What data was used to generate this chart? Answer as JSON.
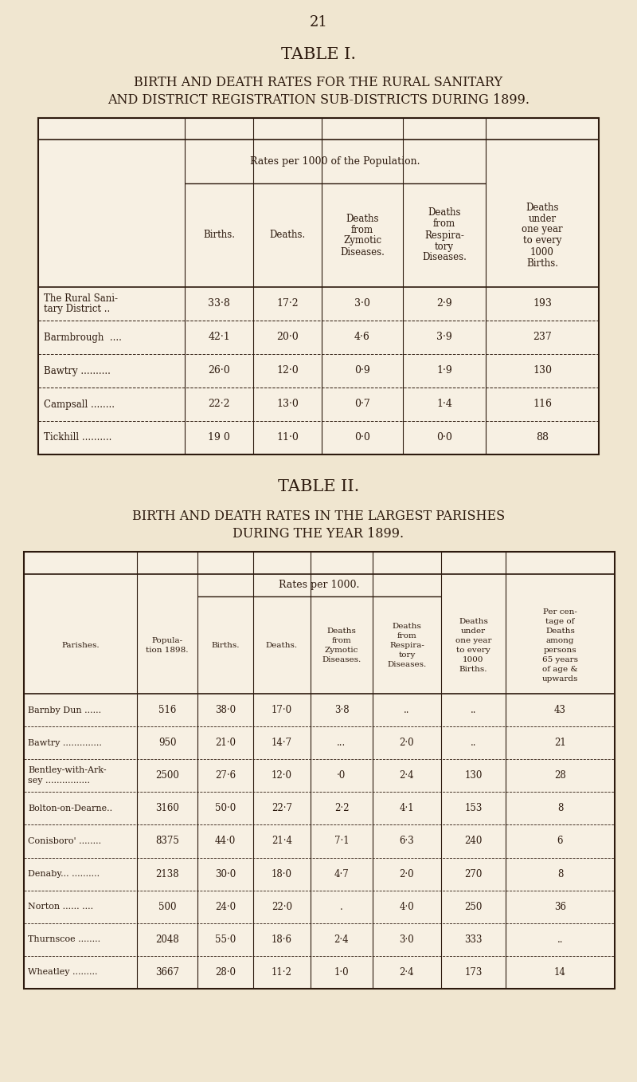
{
  "page_number": "21",
  "bg_color": "#f0e6d0",
  "table_bg": "#f7f0e3",
  "text_color": "#2d1a0e",
  "table1": {
    "title": "TABLE I.",
    "sub1": "BIRTH AND DEATH RATES FOR THE RURAL SANITARY",
    "sub2": "AND DISTRICT REGISTRATION SUB-DISTRICTS DURING 1899.",
    "group_header": "Rates per 1000 of the Population.",
    "col_headers": [
      "Births.",
      "Deaths.",
      "Deaths\nfrom\nZymotic\nDiseases.",
      "Deaths\nfrom\nRespira-\ntory\nDiseases.",
      "Deaths\nunder\none year\nto every\n1000\nBirths."
    ],
    "rows": [
      [
        "The Rural Sani-\ntary District ..",
        "33·8",
        "17·2",
        "3·0",
        "2·9",
        "193"
      ],
      [
        "Barmbrough  ....",
        "42·1",
        "20·0",
        "4·6",
        "3·9",
        "237"
      ],
      [
        "Bawtry ..........",
        "26·0",
        "12·0",
        "0·9",
        "1·9",
        "130"
      ],
      [
        "Campsall ........",
        "22·2",
        "13·0",
        "0·7",
        "1·4",
        "116"
      ],
      [
        "Tickhill ..........",
        "19 0",
        "11·0",
        "0·0",
        "0·0",
        "88"
      ]
    ]
  },
  "table2": {
    "title": "TABLE II.",
    "sub1": "BIRTH AND DEATH RATES IN THE LARGEST PARISHES",
    "sub2": "DURING THE YEAR 1899.",
    "group_header": "Rates per 1000.",
    "col_headers": [
      "Parishes.",
      "Popula-\ntion 1898.",
      "Births.",
      "Deaths.",
      "Deaths\nfrom\nZymotic\nDiseases.",
      "Deaths\nfrom\nRespira-\ntory\nDiseases.",
      "Deaths\nunder\none year\nto every\n1000\nBirths.",
      "Per cen-\ntage of\nDeaths\namong\npersons\n65 years\nof age &\nupwards"
    ],
    "rows": [
      [
        "Barnby Dun ......",
        "516",
        "38·0",
        "17·0",
        "3·8",
        "..",
        "..",
        "43"
      ],
      [
        "Bawtry ..............",
        "950",
        "21·0",
        "14·7",
        "...",
        "2·0",
        "..",
        "21"
      ],
      [
        "Bentley-with-Ark-\nsey ................",
        "2500",
        "27·6",
        "12·0",
        "·0",
        "2·4",
        "130",
        "28"
      ],
      [
        "Bolton-on-Dearne..",
        "3160",
        "50·0",
        "22·7",
        "2·2",
        "4·1",
        "153",
        "8"
      ],
      [
        "Conisboro' ........",
        "8375",
        "44·0",
        "21·4",
        "7·1",
        "6·3",
        "240",
        "6"
      ],
      [
        "Denaby... ..........",
        "2138",
        "30·0",
        "18·0",
        "4·7",
        "2·0",
        "270",
        "8"
      ],
      [
        "Norton ...... ....",
        "500",
        "24·0",
        "22·0",
        ".",
        "4·0",
        "250",
        "36"
      ],
      [
        "Thurnscoe ........",
        "2048",
        "55·0",
        "18·6",
        "2·4",
        "3·0",
        "333",
        ".."
      ],
      [
        "Wheatley .........",
        "3667",
        "28·0",
        "11·2",
        "1·0",
        "2·4",
        "173",
        "14"
      ]
    ]
  }
}
